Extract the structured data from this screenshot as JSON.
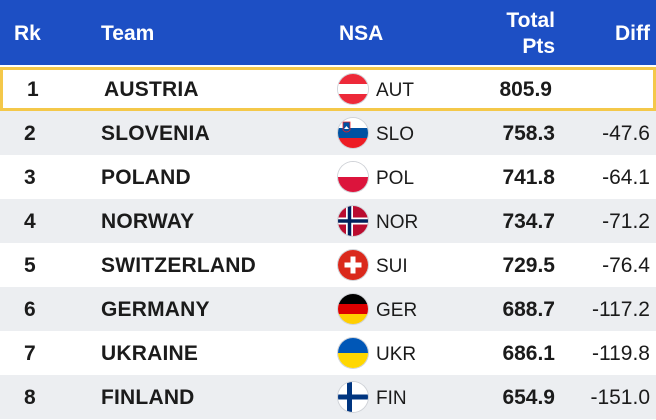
{
  "header": {
    "rank": "Rk",
    "team": "Team",
    "nsa": "NSA",
    "total_pts_line1": "Total",
    "total_pts_line2": "Pts",
    "diff": "Diff"
  },
  "colors": {
    "header_bg": "#1d4fc4",
    "highlight_border": "#f4c84a",
    "alt_row_bg": "#eceef1"
  },
  "rows": [
    {
      "rank": "1",
      "team": "AUSTRIA",
      "nsa": "AUT",
      "flag_icon": "austria-flag-icon",
      "pts": "805.9",
      "diff": ""
    },
    {
      "rank": "2",
      "team": "SLOVENIA",
      "nsa": "SLO",
      "flag_icon": "slovenia-flag-icon",
      "pts": "758.3",
      "diff": "-47.6"
    },
    {
      "rank": "3",
      "team": "POLAND",
      "nsa": "POL",
      "flag_icon": "poland-flag-icon",
      "pts": "741.8",
      "diff": "-64.1"
    },
    {
      "rank": "4",
      "team": "NORWAY",
      "nsa": "NOR",
      "flag_icon": "norway-flag-icon",
      "pts": "734.7",
      "diff": "-71.2"
    },
    {
      "rank": "5",
      "team": "SWITZERLAND",
      "nsa": "SUI",
      "flag_icon": "switzerland-flag-icon",
      "pts": "729.5",
      "diff": "-76.4"
    },
    {
      "rank": "6",
      "team": "GERMANY",
      "nsa": "GER",
      "flag_icon": "germany-flag-icon",
      "pts": "688.7",
      "diff": "-117.2"
    },
    {
      "rank": "7",
      "team": "UKRAINE",
      "nsa": "UKR",
      "flag_icon": "ukraine-flag-icon",
      "pts": "686.1",
      "diff": "-119.8"
    },
    {
      "rank": "8",
      "team": "FINLAND",
      "nsa": "FIN",
      "flag_icon": "finland-flag-icon",
      "pts": "654.9",
      "diff": "-151.0"
    }
  ]
}
